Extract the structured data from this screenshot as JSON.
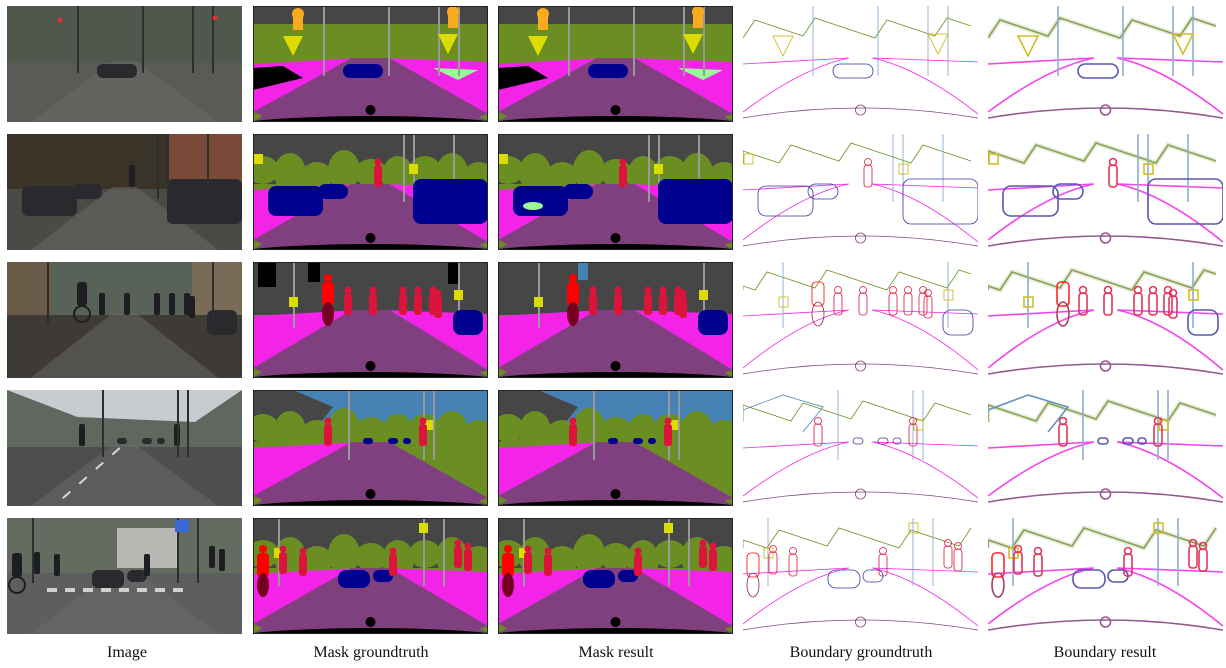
{
  "figure": {
    "column_labels": [
      "Image",
      "Mask groundtruth",
      "Mask result",
      "Boundary groundtruth",
      "Boundary result"
    ],
    "colors": {
      "road": "#804080",
      "sidewalk": "#f423e8",
      "building": "#464646",
      "vegetation": "#6b8e23",
      "sky": "#4682b4",
      "car": "#00008e",
      "person": "#dc143c",
      "rider": "#ff0000",
      "traffic_sign": "#dcdc00",
      "traffic_light": "#faaa1e",
      "pole": "#999999",
      "terrain": "#98fb98",
      "void": "#000000"
    },
    "rows": 5
  }
}
